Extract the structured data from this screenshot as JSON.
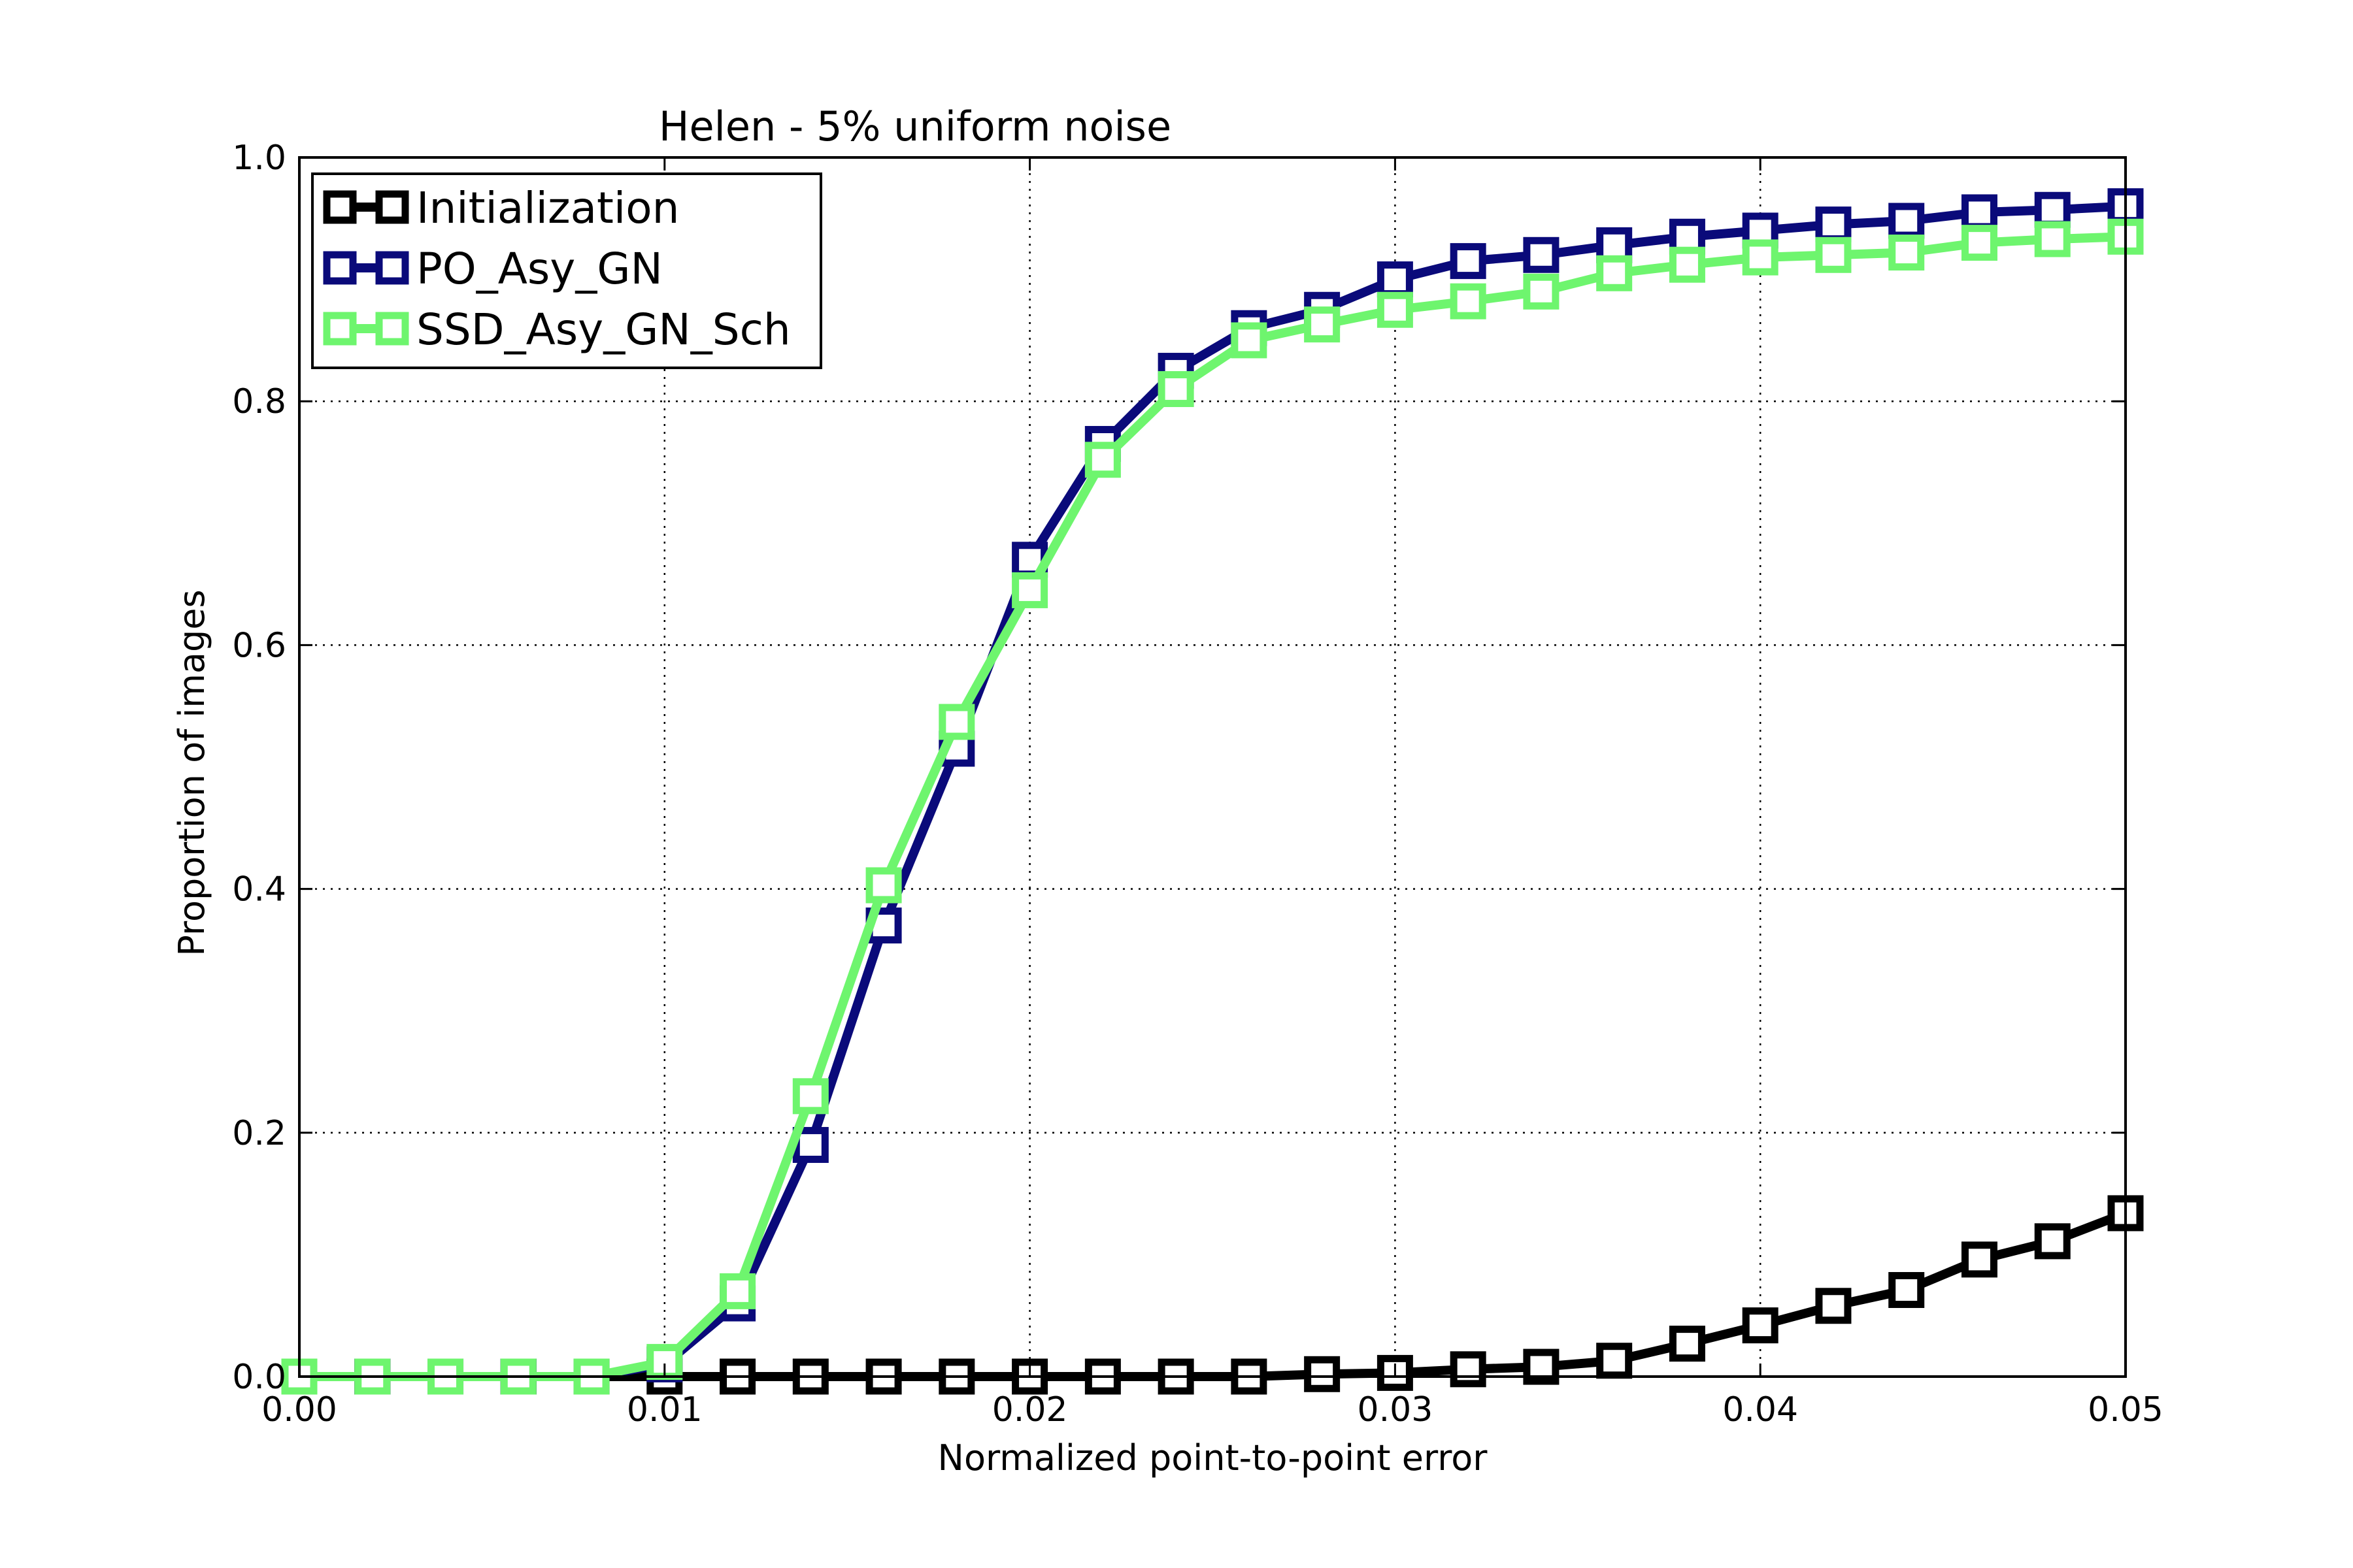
{
  "chart_data": {
    "type": "line",
    "title": "Helen - 5% uniform noise",
    "xlabel": "Normalized point-to-point error",
    "ylabel": "Proportion of images",
    "xlim": [
      0,
      0.05
    ],
    "ylim": [
      0,
      1.0
    ],
    "xticks": [
      "0.00",
      "0.01",
      "0.02",
      "0.03",
      "0.04",
      "0.05"
    ],
    "yticks": [
      "0.0",
      "0.2",
      "0.4",
      "0.6",
      "0.8",
      "1.0"
    ],
    "grid": true,
    "legend_position": "top-left",
    "x": [
      0,
      0.002,
      0.004,
      0.006,
      0.008,
      0.01,
      0.012,
      0.014,
      0.016,
      0.018,
      0.02,
      0.022,
      0.024,
      0.026,
      0.028,
      0.03,
      0.032,
      0.034,
      0.036,
      0.038,
      0.04,
      0.042,
      0.044,
      0.046,
      0.048,
      0.05
    ],
    "series": [
      {
        "name": "Initialization",
        "color": "#000000",
        "values": [
          0,
          0,
          0,
          0,
          0,
          0,
          0,
          0,
          0,
          0,
          0,
          0,
          0,
          0,
          0.002,
          0.003,
          0.006,
          0.008,
          0.013,
          0.027,
          0.042,
          0.058,
          0.071,
          0.096,
          0.111,
          0.134
        ]
      },
      {
        "name": "PO_Asy_GN",
        "color": "#0a0a7a",
        "values": [
          0,
          0,
          0,
          0,
          0,
          0.01,
          0.06,
          0.19,
          0.37,
          0.515,
          0.67,
          0.765,
          0.825,
          0.86,
          0.875,
          0.9,
          0.915,
          0.92,
          0.928,
          0.935,
          0.94,
          0.945,
          0.948,
          0.955,
          0.957,
          0.96
        ]
      },
      {
        "name": "SSD_Asy_GN_Sch",
        "color": "#6ef56e",
        "values": [
          0,
          0,
          0,
          0,
          0,
          0.012,
          0.07,
          0.23,
          0.403,
          0.537,
          0.645,
          0.752,
          0.81,
          0.85,
          0.863,
          0.875,
          0.882,
          0.89,
          0.905,
          0.912,
          0.918,
          0.92,
          0.922,
          0.93,
          0.933,
          0.935
        ]
      }
    ]
  }
}
